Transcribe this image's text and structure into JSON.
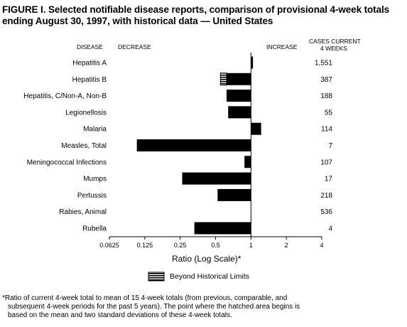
{
  "title": "FIGURE I. Selected notifiable disease reports, comparison of provisional 4-week totals ending August 30, 1997, with historical data — United States",
  "column_headers": {
    "disease": "DISEASE",
    "decrease": "DECREASE",
    "increase": "INCREASE",
    "cases_line1": "CASES CURRENT",
    "cases_line2": "4 WEEKS"
  },
  "xlabel": "Ratio (Log Scale)*",
  "legend_label": "Beyond Historical Limits",
  "footnote_line1": "*Ratio of current 4-week total to mean of 15 4-week totals (from previous, comparable, and",
  "footnote_line2": "subsequent 4-week periods for the past 5 years). The point where the hatched area begins is",
  "footnote_line3": "based on the mean and two standard deviations of these 4-week totals.",
  "chart_data": {
    "type": "bar",
    "orientation": "horizontal",
    "x_scale": "log2",
    "xlim": [
      0.0625,
      4
    ],
    "baseline": 1,
    "x_ticks": [
      "0.0625",
      "0.125",
      "0.25",
      "0.5",
      "1",
      "2",
      "4"
    ],
    "x_tick_values": [
      0.0625,
      0.125,
      0.25,
      0.5,
      1,
      2,
      4
    ],
    "categories": [
      "Hepatitis A",
      "Hepatitis B",
      "Hepatitis, C/Non-A, Non-B",
      "Legionellosis",
      "Malaria",
      "Measles, Total",
      "Meningococcal Infections",
      "Mumps",
      "Pertussis",
      "Rabies, Animal",
      "Rubella"
    ],
    "values": [
      1.04,
      0.55,
      0.62,
      0.64,
      1.22,
      0.107,
      0.88,
      0.26,
      0.52,
      1.0,
      0.33
    ],
    "cases_current_4_weeks": [
      "1,551",
      "387",
      "188",
      "55",
      "114",
      "7",
      "107",
      "17",
      "218",
      "536",
      "4"
    ],
    "beyond_historical_limits": [
      false,
      true,
      false,
      false,
      false,
      false,
      false,
      false,
      false,
      false,
      false
    ],
    "hatch_start": [
      null,
      0.62,
      null,
      null,
      null,
      null,
      null,
      null,
      null,
      null,
      null
    ],
    "grid": false
  }
}
